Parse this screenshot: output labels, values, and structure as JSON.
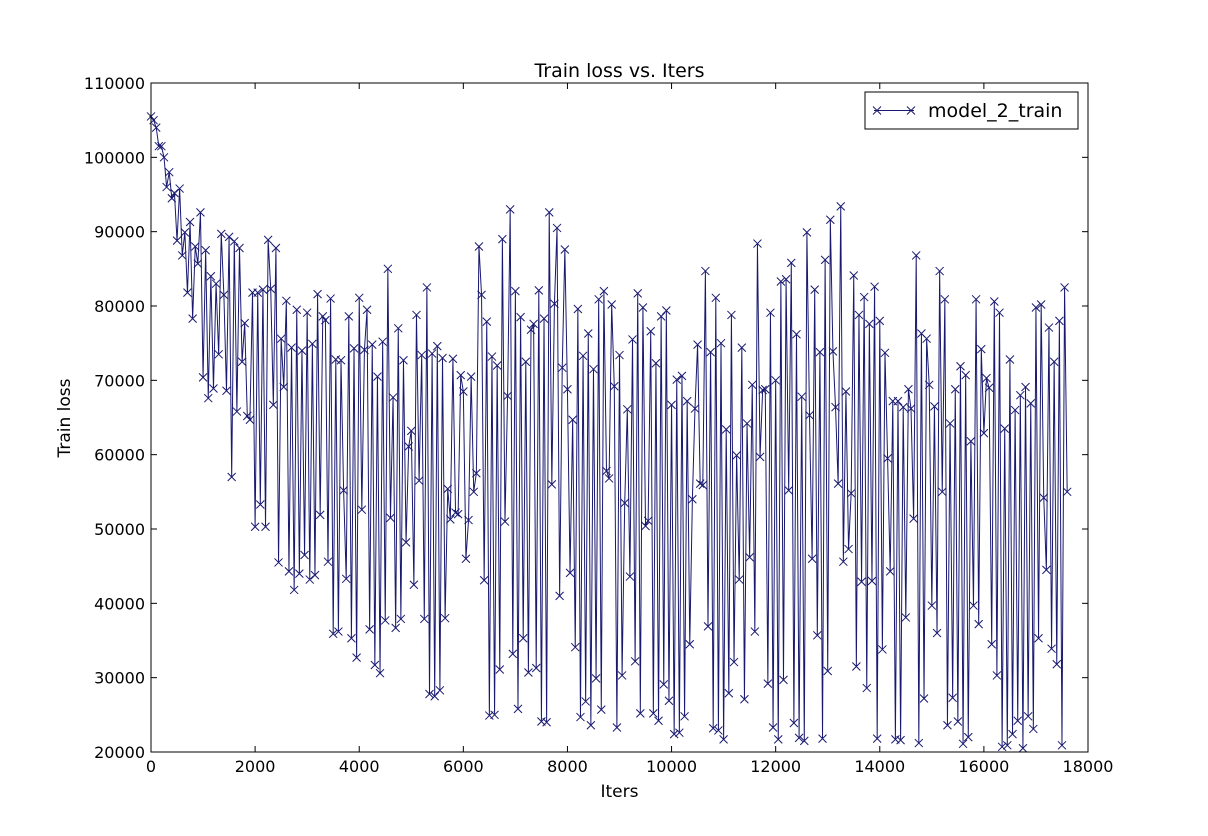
{
  "chart_data": {
    "type": "line",
    "title": "Train loss  vs. Iters",
    "xlabel": "Iters",
    "ylabel": "Train loss",
    "xlim": [
      0,
      18000
    ],
    "ylim": [
      20000,
      110000
    ],
    "x_ticks": [
      0,
      2000,
      4000,
      6000,
      8000,
      10000,
      12000,
      14000,
      16000,
      18000
    ],
    "y_ticks": [
      20000,
      30000,
      40000,
      50000,
      60000,
      70000,
      80000,
      90000,
      100000,
      110000
    ],
    "grid": false,
    "legend_position": "top-right",
    "marker": "x",
    "line_color": "#191970",
    "series": [
      {
        "name": "model_2_train",
        "x_start": 0,
        "x_step": 50,
        "values": [
          105500,
          105000,
          104000,
          101500,
          101500,
          100000,
          96000,
          98000,
          94500,
          95200,
          88800,
          95800,
          86800,
          89900,
          81800,
          91300,
          78300,
          88000,
          85700,
          92600,
          70400,
          87500,
          67600,
          84000,
          68900,
          83000,
          73500,
          89700,
          81500,
          68600,
          89300,
          57000,
          88700,
          65800,
          87800,
          72500,
          77700,
          65200,
          64700,
          81800,
          50300,
          81800,
          53300,
          82200,
          50300,
          88900,
          82300,
          66700,
          87800,
          45500,
          75600,
          69100,
          80700,
          44300,
          74400,
          41800,
          79500,
          44000,
          74000,
          46500,
          79100,
          43200,
          74900,
          43800,
          81600,
          51900,
          78600,
          78100,
          45600,
          81000,
          35900,
          72800,
          36200,
          72700,
          55200,
          43300,
          78600,
          35300,
          74300,
          32700,
          81100,
          52600,
          74100,
          79500,
          36500,
          74800,
          31700,
          70500,
          30600,
          75200,
          37700,
          85000,
          51500,
          67700,
          36700,
          77000,
          37900,
          72700,
          48200,
          61100,
          63200,
          42500,
          78800,
          56500,
          73400,
          37900,
          82500,
          27800,
          73600,
          27500,
          74600,
          28300,
          73000,
          38000,
          55400,
          51300,
          72900,
          52200,
          52000,
          70700,
          68500,
          46000,
          51200,
          70500,
          55000,
          57500,
          88000,
          81500,
          43100,
          77900,
          24900,
          73200,
          25000,
          72000,
          31100,
          89000,
          51000,
          67900,
          93000,
          33200,
          82000,
          25800,
          78500,
          35300,
          72500,
          30700,
          76800,
          77600,
          31300,
          82100,
          24100,
          78300,
          24000,
          92600,
          56000,
          80300,
          90500,
          41000,
          71700,
          87600,
          68800,
          44100,
          64700,
          34100,
          79600,
          24700,
          73300,
          26800,
          76300,
          23600,
          71500,
          29900,
          80900,
          25700,
          82000,
          57800,
          56800,
          80200,
          69200,
          23300,
          73400,
          30300,
          53500,
          66100,
          43600,
          75500,
          32200,
          81700,
          25200,
          79800,
          50400,
          51100,
          76600,
          25200,
          72300,
          24200,
          78600,
          29100,
          79400,
          26900,
          66700,
          22400,
          70100,
          22600,
          70600,
          24800,
          67200,
          34500,
          54000,
          66200,
          74800,
          56100,
          55900,
          84700,
          36900,
          73800,
          23200,
          81100,
          22900,
          75000,
          21700,
          63400,
          27900,
          78800,
          32100,
          59900,
          43200,
          74400,
          27100,
          64200,
          46200,
          69400,
          36200,
          88400,
          59700,
          68700,
          68800,
          29200,
          79100,
          23300,
          70000,
          21700,
          83300,
          29700,
          83600,
          55200,
          85800,
          23900,
          76200,
          21900,
          67800,
          21500,
          89900,
          65300,
          46000,
          82200,
          35700,
          73800,
          21800,
          86200,
          30900,
          91600,
          73900,
          66400,
          56100,
          93400,
          45600,
          68500,
          47300,
          54800,
          84100,
          31500,
          78800,
          42900,
          81200,
          28600,
          77600,
          43000,
          82600,
          21800,
          78000,
          33800,
          73700,
          59500,
          44300,
          67200,
          21700,
          67200,
          21600,
          66400,
          38100,
          68800,
          66200,
          51400,
          86800,
          21200,
          76300,
          27200,
          75600,
          69400,
          39700,
          66500,
          36000,
          84700,
          55000,
          80900,
          23600,
          64200,
          27300,
          68800,
          24100,
          71900,
          21100,
          70700,
          22000,
          61800,
          39700,
          80900,
          37200,
          74200,
          62900,
          70300,
          69000,
          34500,
          80600,
          30300,
          79100,
          20700,
          63500,
          20900,
          72800,
          22400,
          66000,
          24200,
          68000,
          20500,
          69100,
          24800,
          66900,
          23100,
          79800,
          35300,
          80200,
          54200,
          44500,
          77100,
          33900,
          72500,
          31800,
          78000,
          20900,
          82500,
          55000
        ]
      }
    ]
  }
}
